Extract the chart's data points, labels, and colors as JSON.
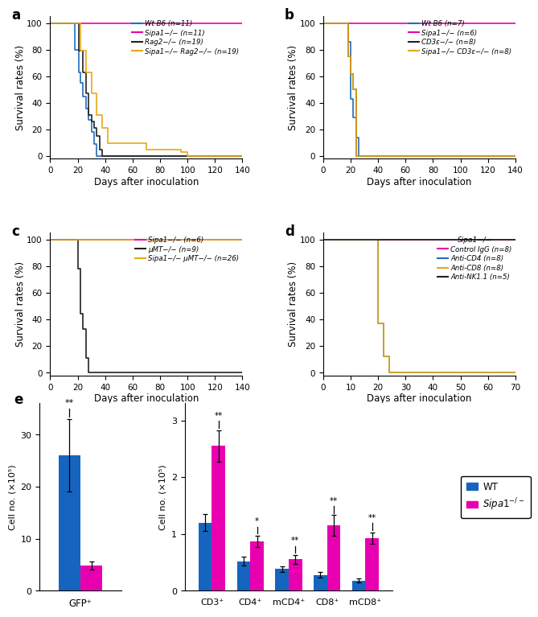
{
  "panel_a": {
    "title": "a",
    "xlabel": "Days after inoculation",
    "ylabel": "Survival rates (%)",
    "xlim": [
      0,
      140
    ],
    "ylim": [
      -2,
      105
    ],
    "xticks": [
      0,
      20,
      40,
      60,
      80,
      100,
      120,
      140
    ],
    "yticks": [
      0,
      20,
      40,
      60,
      80,
      100
    ],
    "lines": [
      {
        "label": "Wt B6 (n=11)",
        "color": "#1f6dbf",
        "x": [
          0,
          18,
          18,
          21,
          21,
          22,
          22,
          24,
          24,
          26,
          26,
          28,
          28,
          30,
          30,
          32,
          32,
          34,
          34,
          36,
          36,
          140
        ],
        "y": [
          100,
          100,
          80,
          80,
          63,
          63,
          55,
          55,
          45,
          45,
          36,
          36,
          27,
          27,
          18,
          18,
          9,
          9,
          0,
          0,
          0,
          0
        ]
      },
      {
        "label": "Sipa1−/− (n=11)",
        "color": "#e800b0",
        "x": [
          0,
          140
        ],
        "y": [
          100,
          100
        ]
      },
      {
        "label": "Rag2−/− (n=19)",
        "color": "#222222",
        "x": [
          0,
          21,
          21,
          24,
          24,
          26,
          26,
          28,
          28,
          30,
          30,
          32,
          32,
          34,
          34,
          36,
          36,
          38,
          38,
          140
        ],
        "y": [
          100,
          100,
          79,
          79,
          63,
          63,
          47,
          47,
          31,
          31,
          26,
          26,
          21,
          21,
          15,
          15,
          5,
          5,
          0,
          0
        ]
      },
      {
        "label": "Sipa1−/− Rag2−/− (n=19)",
        "color": "#e6a817",
        "x": [
          0,
          22,
          22,
          26,
          26,
          30,
          30,
          34,
          34,
          38,
          38,
          42,
          42,
          70,
          70,
          80,
          80,
          95,
          95,
          100,
          100,
          105,
          105,
          140
        ],
        "y": [
          100,
          100,
          79,
          79,
          63,
          63,
          47,
          47,
          31,
          31,
          21,
          21,
          10,
          10,
          5,
          5,
          5,
          5,
          3,
          3,
          0,
          0,
          0,
          0
        ]
      }
    ]
  },
  "panel_b": {
    "title": "b",
    "xlabel": "Days after inoculation",
    "ylabel": "Survival rates (%)",
    "xlim": [
      0,
      140
    ],
    "ylim": [
      -2,
      105
    ],
    "xticks": [
      0,
      20,
      40,
      60,
      80,
      100,
      120,
      140
    ],
    "yticks": [
      0,
      20,
      40,
      60,
      80,
      100
    ],
    "lines": [
      {
        "label": "Wt B6 (n=7)",
        "color": "#1f6dbf",
        "x": [
          0,
          18,
          18,
          20,
          20,
          22,
          22,
          24,
          24,
          26,
          26,
          28,
          28,
          140
        ],
        "y": [
          100,
          100,
          86,
          86,
          43,
          43,
          29,
          29,
          14,
          14,
          0,
          0,
          0,
          0
        ]
      },
      {
        "label": "Sipa1−/− (n=6)",
        "color": "#e800b0",
        "x": [
          0,
          140
        ],
        "y": [
          100,
          100
        ]
      },
      {
        "label": "CD3ε−/− (n=8)",
        "color": "#222222",
        "x": [
          0,
          18,
          18,
          20,
          20,
          22,
          22,
          24,
          24,
          26,
          26,
          140
        ],
        "y": [
          100,
          100,
          75,
          75,
          62,
          62,
          50,
          50,
          0,
          0,
          0,
          0
        ]
      },
      {
        "label": "Sipa1−/− CD3ε−/− (n=8)",
        "color": "#e6a817",
        "x": [
          0,
          18,
          18,
          20,
          20,
          22,
          22,
          24,
          24,
          26,
          26,
          140
        ],
        "y": [
          100,
          100,
          75,
          75,
          62,
          62,
          50,
          50,
          0,
          0,
          0,
          0
        ]
      }
    ]
  },
  "panel_c": {
    "title": "c",
    "xlabel": "Days after inoculation",
    "ylabel": "Survival rates (%)",
    "xlim": [
      0,
      140
    ],
    "ylim": [
      -2,
      105
    ],
    "xticks": [
      0,
      20,
      40,
      60,
      80,
      100,
      120,
      140
    ],
    "yticks": [
      0,
      20,
      40,
      60,
      80,
      100
    ],
    "lines": [
      {
        "label": "Sipa1−/− (n=6)",
        "color": "#e800b0",
        "x": [
          0,
          140
        ],
        "y": [
          100,
          100
        ]
      },
      {
        "label": "μMT−/− (n=9)",
        "color": "#222222",
        "x": [
          0,
          20,
          20,
          22,
          22,
          24,
          24,
          26,
          26,
          28,
          28,
          30,
          30,
          140
        ],
        "y": [
          100,
          100,
          78,
          78,
          44,
          44,
          33,
          33,
          11,
          11,
          0,
          0,
          0,
          0
        ]
      },
      {
        "label": "Sipa1−/− μMT−/− (n=26)",
        "color": "#e6a817",
        "x": [
          0,
          140
        ],
        "y": [
          100,
          100
        ]
      }
    ]
  },
  "panel_d": {
    "title": "d",
    "xlabel": "Days after inoculation",
    "ylabel": "Survival rates (%)",
    "xlim": [
      0,
      70
    ],
    "ylim": [
      -2,
      105
    ],
    "xticks": [
      0,
      10,
      20,
      30,
      40,
      50,
      60,
      70
    ],
    "yticks": [
      0,
      20,
      40,
      60,
      80,
      100
    ],
    "legend_title": "Sipa1−/−",
    "lines": [
      {
        "label": "Control IgG (n=8)",
        "color": "#e800b0",
        "x": [
          0,
          70
        ],
        "y": [
          100,
          100
        ]
      },
      {
        "label": "Anti-CD4 (n=8)",
        "color": "#1f6dbf",
        "x": [
          0,
          20,
          20,
          22,
          22,
          24,
          24,
          26,
          26,
          28,
          28,
          70
        ],
        "y": [
          100,
          100,
          37,
          37,
          12,
          12,
          0,
          0,
          0,
          0,
          0,
          0
        ]
      },
      {
        "label": "Anti-CD8 (n=8)",
        "color": "#e6a817",
        "x": [
          0,
          20,
          20,
          22,
          22,
          24,
          24,
          26,
          26,
          28,
          28,
          70
        ],
        "y": [
          100,
          100,
          37,
          37,
          12,
          12,
          0,
          0,
          0,
          0,
          0,
          0
        ]
      },
      {
        "label": "Anti-NK1.1 (n=5)",
        "color": "#222222",
        "x": [
          0,
          70
        ],
        "y": [
          100,
          100
        ]
      }
    ]
  },
  "panel_e": {
    "left_bar": {
      "categories": [
        "GFP⁺"
      ],
      "wt_values": [
        26.0
      ],
      "sipa_values": [
        4.8
      ],
      "wt_err": [
        7.0
      ],
      "sipa_err": [
        0.8
      ],
      "ylabel": "Cell no. (×10⁵)",
      "ylim": [
        0,
        36
      ],
      "yticks": [
        0,
        10,
        20,
        30
      ],
      "yticklabels": [
        "0",
        "10",
        "20",
        "30"
      ],
      "sig_x": -0.175,
      "sig_y": 34.5,
      "sig_label": "**"
    },
    "right_bar": {
      "categories": [
        "CD3⁺",
        "CD4⁺",
        "mCD4⁺",
        "CD8⁺",
        "mCD8⁺"
      ],
      "wt_values": [
        1.2,
        0.52,
        0.38,
        0.28,
        0.18
      ],
      "sipa_values": [
        2.55,
        0.87,
        0.55,
        1.15,
        0.93
      ],
      "wt_err": [
        0.15,
        0.08,
        0.05,
        0.05,
        0.03
      ],
      "sipa_err": [
        0.28,
        0.1,
        0.08,
        0.18,
        0.1
      ],
      "ylabel": "Cell no. (×10⁵)",
      "ylim": [
        0,
        3.3
      ],
      "yticks": [
        0,
        1,
        2,
        3
      ],
      "yticklabels": [
        "0",
        "1",
        "2",
        "3"
      ],
      "sig_labels": [
        "**",
        "*",
        "**",
        "**",
        "**"
      ],
      "sig_on_sipa": [
        true,
        true,
        true,
        true,
        true
      ]
    },
    "wt_color": "#1565c0",
    "sipa_color": "#e800b0",
    "legend_labels": [
      "WT",
      "Sipa1−/−"
    ]
  }
}
